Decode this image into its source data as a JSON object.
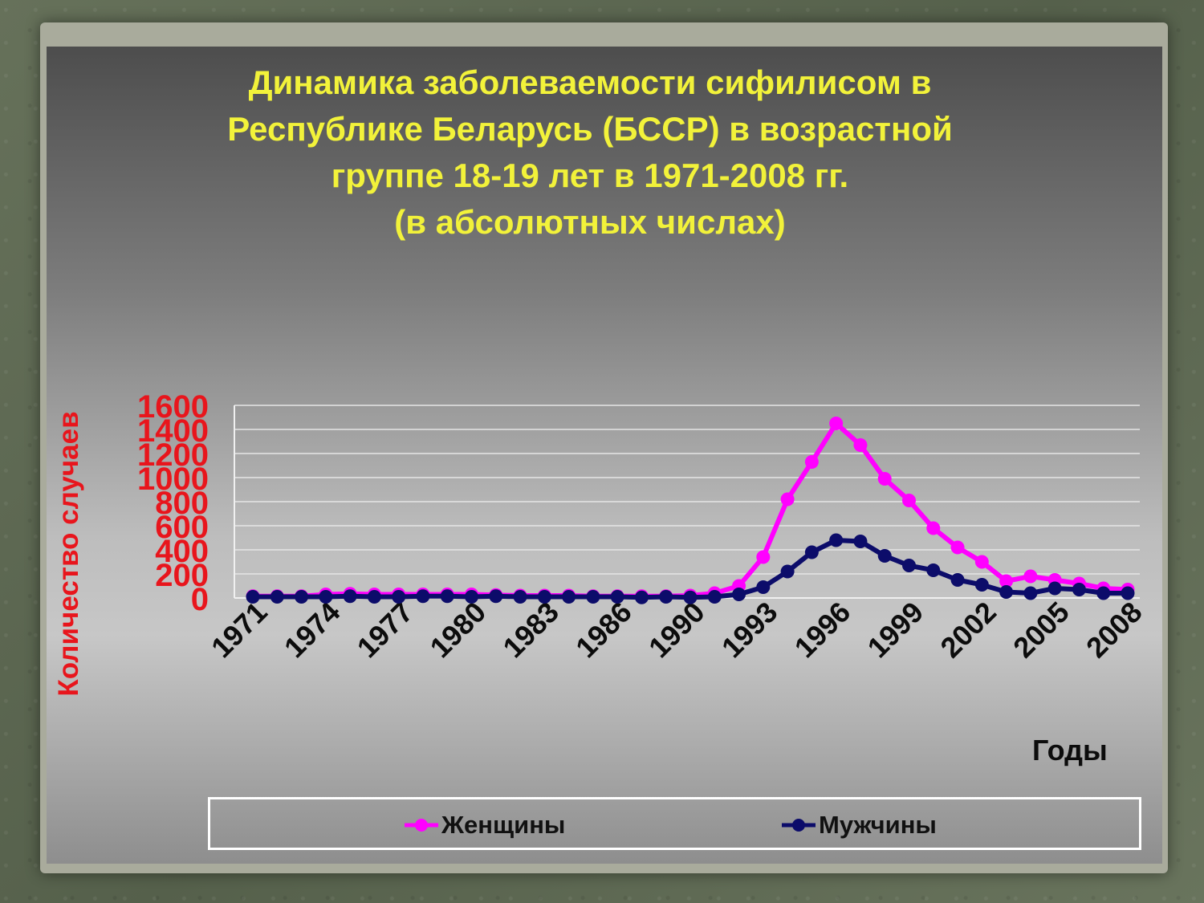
{
  "title_lines": [
    "Динамика заболеваемости сифилисом в",
    "Республике Беларусь (БССР) в возрастной",
    "группе 18-19 лет в 1971-2008 гг.",
    "(в абсолютных числах)"
  ],
  "chart_data": {
    "type": "line",
    "xlabel": "Годы",
    "ylabel": "Количество случаев",
    "ylim": [
      0,
      1600
    ],
    "yticks": [
      "0",
      "200",
      "400",
      "600",
      "800",
      "1000",
      "1200",
      "1400",
      "1600"
    ],
    "x_tick_labels": [
      "1971",
      "1974",
      "1977",
      "1980",
      "1983",
      "1986",
      "1990",
      "1993",
      "1996",
      "1999",
      "2002",
      "2005",
      "2008"
    ],
    "grid": "horizontal",
    "legend": "bottom",
    "categories": [
      "1971",
      "1972",
      "1973",
      "1974",
      "1975",
      "1976",
      "1977",
      "1978",
      "1979",
      "1980",
      "1981",
      "1982",
      "1983",
      "1984",
      "1985",
      "1986",
      "1987",
      "1989",
      "1990",
      "1991",
      "1992",
      "1993",
      "1994",
      "1995",
      "1996",
      "1997",
      "1998",
      "1999",
      "2000",
      "2001",
      "2002",
      "2003",
      "2004",
      "2005",
      "2006",
      "2007",
      "2008"
    ],
    "series": [
      {
        "name": "Женщины",
        "color": "#ff00ff",
        "values": [
          15,
          15,
          15,
          30,
          35,
          30,
          30,
          30,
          30,
          30,
          25,
          20,
          20,
          20,
          15,
          15,
          15,
          15,
          20,
          40,
          100,
          340,
          820,
          1130,
          1450,
          1270,
          990,
          810,
          580,
          420,
          300,
          140,
          180,
          150,
          120,
          80,
          70
        ]
      },
      {
        "name": "Мужчины",
        "color": "#0c0c6a",
        "values": [
          10,
          10,
          10,
          10,
          15,
          10,
          10,
          15,
          15,
          10,
          15,
          10,
          10,
          10,
          10,
          10,
          5,
          10,
          5,
          10,
          30,
          90,
          220,
          380,
          480,
          470,
          350,
          270,
          230,
          150,
          110,
          50,
          40,
          80,
          70,
          40,
          40
        ]
      }
    ]
  }
}
